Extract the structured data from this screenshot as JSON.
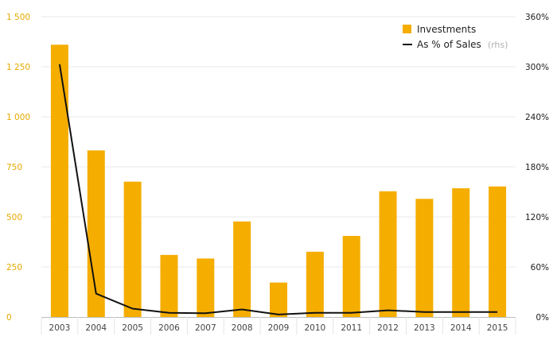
{
  "chart_data": {
    "type": "bar",
    "categories": [
      "2003",
      "2004",
      "2005",
      "2006",
      "2007",
      "2008",
      "2009",
      "2010",
      "2011",
      "2012",
      "2013",
      "2014",
      "2015"
    ],
    "series": [
      {
        "name": "Investments",
        "type": "bar",
        "axis": "left",
        "color": "#f5ad00",
        "values": [
          1360,
          832,
          676,
          310,
          292,
          477,
          172,
          326,
          405,
          628,
          590,
          643,
          652
        ]
      },
      {
        "name": "As % of Sales",
        "name_suffix": "(rhs)",
        "type": "line",
        "axis": "right",
        "color": "#111111",
        "values": [
          303,
          28,
          10,
          5,
          4.5,
          9,
          3,
          5,
          5,
          8,
          6,
          6,
          6
        ]
      }
    ],
    "y_left": {
      "ylim": [
        0,
        1500
      ],
      "ticks": [
        0,
        250,
        500,
        750,
        1000,
        1250,
        1500
      ],
      "tick_labels": [
        "0",
        "250",
        "500",
        "750",
        "1 000",
        "1 250",
        "1 500"
      ],
      "color": "#e6a800"
    },
    "y_right": {
      "ylim": [
        0,
        360
      ],
      "ticks": [
        0,
        60,
        120,
        180,
        240,
        300,
        360
      ],
      "tick_labels": [
        "0%",
        "60%",
        "120%",
        "180%",
        "240%",
        "300%",
        "360%"
      ]
    },
    "grid": true,
    "legend_position": "top-right",
    "title": "",
    "xlabel": "",
    "ylabel": ""
  }
}
